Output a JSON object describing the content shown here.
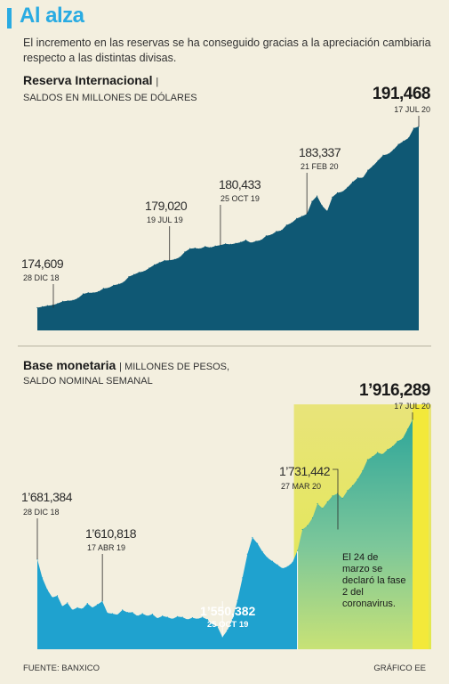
{
  "header": {
    "title": "Al alza",
    "intro": "El incremento en las reservas se ha conseguido gracias a la apreciación cambiaria respecto a las distintas divisas."
  },
  "chart1": {
    "title": "Reserva Internacional",
    "title_sep": "|",
    "subtitle": "SALDOS EN MILLONES DE DÓLARES"
  },
  "chart2": {
    "title": "Base monetaria",
    "title_sub": "| MILLONES DE PESOS,",
    "subtitle": "SALDO NOMINAL SEMANAL",
    "note": "El 24 de marzo se declaró la fase 2 del coronavirus."
  },
  "footer": {
    "source": "FUENTE: BANXICO",
    "credit": "GRÁFICO EE"
  },
  "colors": {
    "accent": "#29abe2",
    "reserva_fill": "#0f5874",
    "base_fill": "#1fa2cf",
    "covid_highlight": "#e4ec4a",
    "background": "#f3efdf"
  },
  "chart_data": [
    {
      "type": "area",
      "id": "reserva",
      "title": "Reserva Internacional",
      "ylabel": "SALDOS EN MILLONES DE DÓLARES",
      "x_range": [
        "2018-12-28",
        "2020-07-17"
      ],
      "ylim": [
        172500,
        191800
      ],
      "series": [
        {
          "values": [
            174609,
            174700,
            174800,
            174850,
            175000,
            175200,
            175250,
            175300,
            175500,
            175900,
            176000,
            176000,
            176100,
            176400,
            176450,
            176700,
            176800,
            177000,
            177500,
            177700,
            177900,
            178000,
            178300,
            178600,
            178800,
            179000,
            179020,
            179100,
            179300,
            179800,
            180100,
            180150,
            180100,
            180300,
            180200,
            180350,
            180433,
            180550,
            180500,
            180600,
            180700,
            180900,
            180650,
            180800,
            180900,
            181300,
            181400,
            181700,
            181800,
            182300,
            182500,
            182900,
            183100,
            183337,
            184500,
            185000,
            184100,
            183600,
            184900,
            185300,
            185400,
            185800,
            186300,
            186700,
            186700,
            187400,
            187800,
            188300,
            188800,
            188900,
            189300,
            189800,
            190100,
            190400,
            191300,
            191468
          ]
        }
      ],
      "annotations": [
        {
          "index": 0,
          "value": "174,609",
          "date": "28 DIC 18"
        },
        {
          "index": 26,
          "value": "179,020",
          "date": "19 JUL 19"
        },
        {
          "index": 36,
          "value": "180,433",
          "date": "25 OCT 19"
        },
        {
          "index": 53,
          "value": "183,337",
          "date": "21 FEB 20"
        },
        {
          "index": 75,
          "value": "191,468",
          "date": "17 JUL 20"
        }
      ]
    },
    {
      "type": "area",
      "id": "base_monetaria",
      "title": "Base monetaria",
      "ylabel": "MILLONES DE PESOS, SALDO NOMINAL SEMANAL",
      "x_range": [
        "2018-12-28",
        "2020-07-17"
      ],
      "ylim": [
        1530000,
        1930000
      ],
      "series": [
        {
          "values": [
            1681384,
            1650000,
            1630000,
            1617000,
            1620000,
            1602000,
            1608000,
            1596000,
            1600000,
            1598000,
            1607000,
            1600000,
            1605000,
            1610818,
            1591000,
            1590000,
            1588000,
            1596000,
            1592000,
            1592000,
            1586000,
            1590000,
            1586000,
            1589000,
            1582000,
            1586000,
            1584000,
            1581000,
            1585000,
            1584000,
            1580000,
            1583000,
            1581000,
            1584000,
            1580000,
            1572000,
            1568000,
            1550382,
            1562000,
            1580000,
            1612000,
            1650000,
            1690000,
            1718000,
            1708000,
            1694000,
            1684000,
            1678000,
            1672000,
            1666000,
            1669000,
            1676000,
            1696000,
            1731442,
            1738000,
            1751000,
            1775000,
            1767000,
            1778000,
            1788000,
            1792000,
            1784000,
            1797000,
            1805000,
            1816000,
            1830000,
            1849000,
            1854000,
            1861000,
            1858000,
            1866000,
            1871000,
            1880000,
            1884000,
            1900000,
            1916289
          ]
        }
      ],
      "highlight_from_index": 52,
      "annotations": [
        {
          "index": 0,
          "value": "1’681,384",
          "date": "28 DIC 18"
        },
        {
          "index": 13,
          "value": "1’610,818",
          "date": "17 ABR 19"
        },
        {
          "index": 37,
          "value": "1’550,382",
          "date": "25 OCT 19"
        },
        {
          "index": 53,
          "value": "1’731,442",
          "date": "27 MAR 20"
        },
        {
          "index": 75,
          "value": "1’916,289",
          "date": "17 JUL 20"
        }
      ]
    }
  ]
}
